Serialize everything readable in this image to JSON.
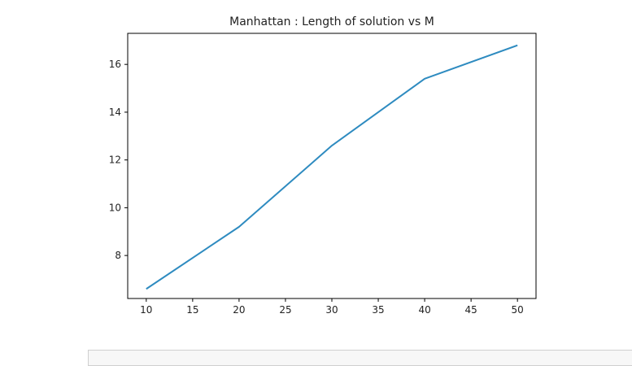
{
  "chart_data": {
    "type": "line",
    "title": "Manhattan : Length of solution vs M",
    "xlabel": "",
    "ylabel": "",
    "x": [
      10,
      20,
      30,
      40,
      50
    ],
    "series": [
      {
        "values": [
          6.6,
          9.2,
          12.6,
          15.4,
          16.8
        ],
        "color": "#2e8bc0"
      }
    ],
    "xlim": [
      8,
      52
    ],
    "ylim": [
      6.2,
      17.3
    ],
    "xticks": [
      "10",
      "15",
      "20",
      "25",
      "30",
      "35",
      "40",
      "45",
      "50"
    ],
    "yticks": [
      "8",
      "10",
      "12",
      "14",
      "16"
    ],
    "grid": false,
    "legend": "none"
  }
}
